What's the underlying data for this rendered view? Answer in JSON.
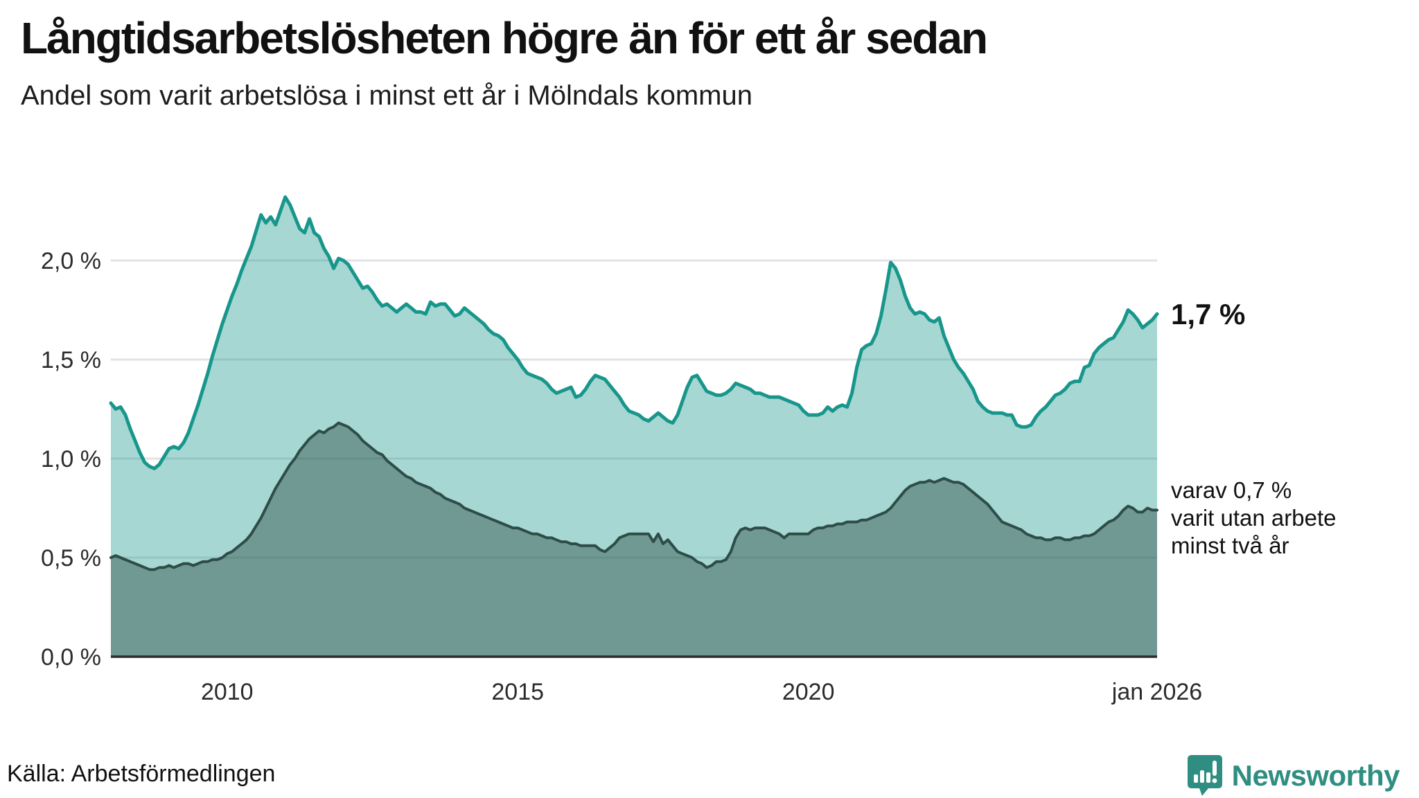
{
  "header": {
    "title": "Långtidsarbetslösheten högre än för ett år sedan",
    "subtitle": "Andel som varit arbetslösa i minst ett år i Mölndals kommun"
  },
  "chart_data": {
    "type": "area",
    "title": "Långtidsarbetslösheten högre än för ett år sedan",
    "subtitle": "Andel som varit arbetslösa i minst ett år i Mölndals kommun",
    "x_start": "2008-01",
    "x_end": "2026-01",
    "x_frequency": "monthly",
    "ylim": [
      0,
      2.55
    ],
    "grid": true,
    "y_ticks": [
      {
        "label": "0,0 %",
        "value": 0.0
      },
      {
        "label": "0,5 %",
        "value": 0.5
      },
      {
        "label": "1,0 %",
        "value": 1.0
      },
      {
        "label": "1,5 %",
        "value": 1.5
      },
      {
        "label": "2,0 %",
        "value": 2.0
      }
    ],
    "x_ticks": [
      {
        "label": "2010",
        "month_index": 24
      },
      {
        "label": "2015",
        "month_index": 84
      },
      {
        "label": "2020",
        "month_index": 144
      },
      {
        "label": "jan 2026",
        "month_index": 216
      }
    ],
    "series": [
      {
        "name": "Andel som varit arbetslösa i minst ett år",
        "end_value_label": "1,7 %",
        "line_color": "#18968b",
        "fill_color": "rgba(24,150,139,0.385)",
        "line_width": 5,
        "values": [
          1.28,
          1.25,
          1.26,
          1.22,
          1.15,
          1.09,
          1.03,
          0.98,
          0.96,
          0.95,
          0.97,
          1.01,
          1.05,
          1.06,
          1.05,
          1.08,
          1.13,
          1.2,
          1.27,
          1.35,
          1.43,
          1.52,
          1.6,
          1.68,
          1.75,
          1.82,
          1.88,
          1.95,
          2.01,
          2.07,
          2.15,
          2.23,
          2.19,
          2.22,
          2.18,
          2.25,
          2.32,
          2.28,
          2.22,
          2.16,
          2.14,
          2.21,
          2.14,
          2.12,
          2.06,
          2.02,
          1.96,
          2.01,
          2.0,
          1.98,
          1.94,
          1.9,
          1.86,
          1.87,
          1.84,
          1.8,
          1.77,
          1.78,
          1.76,
          1.74,
          1.76,
          1.78,
          1.76,
          1.74,
          1.74,
          1.73,
          1.79,
          1.77,
          1.78,
          1.78,
          1.75,
          1.72,
          1.73,
          1.76,
          1.74,
          1.72,
          1.7,
          1.68,
          1.65,
          1.63,
          1.62,
          1.6,
          1.56,
          1.53,
          1.5,
          1.46,
          1.43,
          1.42,
          1.41,
          1.4,
          1.38,
          1.35,
          1.33,
          1.34,
          1.35,
          1.36,
          1.31,
          1.32,
          1.35,
          1.39,
          1.42,
          1.41,
          1.4,
          1.37,
          1.34,
          1.31,
          1.27,
          1.24,
          1.23,
          1.22,
          1.2,
          1.19,
          1.21,
          1.23,
          1.21,
          1.19,
          1.18,
          1.22,
          1.29,
          1.36,
          1.41,
          1.42,
          1.38,
          1.34,
          1.33,
          1.32,
          1.32,
          1.33,
          1.35,
          1.38,
          1.37,
          1.36,
          1.35,
          1.33,
          1.33,
          1.32,
          1.31,
          1.31,
          1.31,
          1.3,
          1.29,
          1.28,
          1.27,
          1.24,
          1.22,
          1.22,
          1.22,
          1.23,
          1.26,
          1.24,
          1.26,
          1.27,
          1.26,
          1.33,
          1.46,
          1.55,
          1.57,
          1.58,
          1.63,
          1.72,
          1.85,
          1.99,
          1.96,
          1.9,
          1.82,
          1.76,
          1.73,
          1.74,
          1.73,
          1.7,
          1.69,
          1.71,
          1.62,
          1.56,
          1.5,
          1.46,
          1.43,
          1.39,
          1.35,
          1.29,
          1.26,
          1.24,
          1.23,
          1.23,
          1.23,
          1.22,
          1.22,
          1.17,
          1.16,
          1.16,
          1.17,
          1.21,
          1.24,
          1.26,
          1.29,
          1.32,
          1.33,
          1.35,
          1.38,
          1.39,
          1.39,
          1.46,
          1.47,
          1.53,
          1.56,
          1.58,
          1.6,
          1.61,
          1.65,
          1.69,
          1.75,
          1.73,
          1.7,
          1.66,
          1.68,
          1.7,
          1.73
        ]
      },
      {
        "name": "varav utan arbete minst två år",
        "end_value_label": "0,7 %",
        "line_color": "#2e4d48",
        "fill_color": "rgba(46,77,72,0.45)",
        "line_width": 4,
        "values": [
          0.5,
          0.51,
          0.5,
          0.49,
          0.48,
          0.47,
          0.46,
          0.45,
          0.44,
          0.44,
          0.45,
          0.45,
          0.46,
          0.45,
          0.46,
          0.47,
          0.47,
          0.46,
          0.47,
          0.48,
          0.48,
          0.49,
          0.49,
          0.5,
          0.52,
          0.53,
          0.55,
          0.57,
          0.59,
          0.62,
          0.66,
          0.7,
          0.75,
          0.8,
          0.85,
          0.89,
          0.93,
          0.97,
          1.0,
          1.04,
          1.07,
          1.1,
          1.12,
          1.14,
          1.13,
          1.15,
          1.16,
          1.18,
          1.17,
          1.16,
          1.14,
          1.12,
          1.09,
          1.07,
          1.05,
          1.03,
          1.02,
          0.99,
          0.97,
          0.95,
          0.93,
          0.91,
          0.9,
          0.88,
          0.87,
          0.86,
          0.85,
          0.83,
          0.82,
          0.8,
          0.79,
          0.78,
          0.77,
          0.75,
          0.74,
          0.73,
          0.72,
          0.71,
          0.7,
          0.69,
          0.68,
          0.67,
          0.66,
          0.65,
          0.65,
          0.64,
          0.63,
          0.62,
          0.62,
          0.61,
          0.6,
          0.6,
          0.59,
          0.58,
          0.58,
          0.57,
          0.57,
          0.56,
          0.56,
          0.56,
          0.56,
          0.54,
          0.53,
          0.55,
          0.57,
          0.6,
          0.61,
          0.62,
          0.62,
          0.62,
          0.62,
          0.62,
          0.58,
          0.62,
          0.57,
          0.59,
          0.56,
          0.53,
          0.52,
          0.51,
          0.5,
          0.48,
          0.47,
          0.45,
          0.46,
          0.48,
          0.48,
          0.49,
          0.53,
          0.6,
          0.64,
          0.65,
          0.64,
          0.65,
          0.65,
          0.65,
          0.64,
          0.63,
          0.62,
          0.6,
          0.62,
          0.62,
          0.62,
          0.62,
          0.62,
          0.64,
          0.65,
          0.65,
          0.66,
          0.66,
          0.67,
          0.67,
          0.68,
          0.68,
          0.68,
          0.69,
          0.69,
          0.7,
          0.71,
          0.72,
          0.73,
          0.75,
          0.78,
          0.81,
          0.84,
          0.86,
          0.87,
          0.88,
          0.88,
          0.89,
          0.88,
          0.89,
          0.9,
          0.89,
          0.88,
          0.88,
          0.87,
          0.85,
          0.83,
          0.81,
          0.79,
          0.77,
          0.74,
          0.71,
          0.68,
          0.67,
          0.66,
          0.65,
          0.64,
          0.62,
          0.61,
          0.6,
          0.6,
          0.59,
          0.59,
          0.6,
          0.6,
          0.59,
          0.59,
          0.6,
          0.6,
          0.61,
          0.61,
          0.62,
          0.64,
          0.66,
          0.68,
          0.69,
          0.71,
          0.74,
          0.76,
          0.75,
          0.73,
          0.73,
          0.75,
          0.74,
          0.74
        ]
      }
    ],
    "legend_position": "end-of-line-labels"
  },
  "annotations": {
    "upper_end_label": "1,7 %",
    "lower_end_label_lines": [
      "varav 0,7 %",
      "varit utan arbete",
      "minst två år"
    ]
  },
  "footer": {
    "source": "Källa: Arbetsförmedlingen",
    "brand": "Newsworthy"
  },
  "colors": {
    "accent_teal": "#18968b",
    "dark_slate": "#2e4d48",
    "gridline": "#e2e2e7",
    "baseline": "#2b2b2b",
    "tick_text": "#2b2b2b",
    "brand_teal": "#2f8e81"
  }
}
